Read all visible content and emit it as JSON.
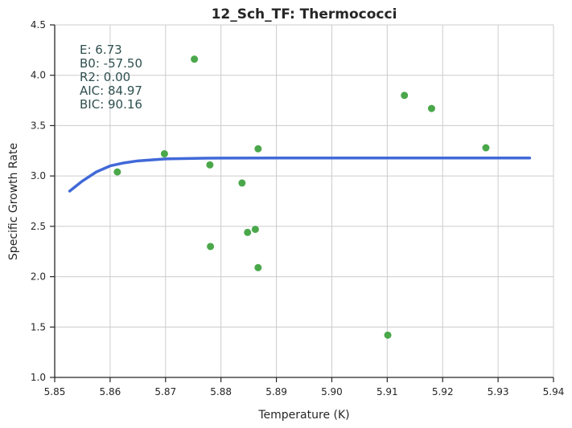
{
  "chart_data": {
    "type": "scatter",
    "title": "12_Sch_TF: Thermococci",
    "xlabel": "Temperature (K)",
    "ylabel": "Specific Growth Rate",
    "xlim": [
      5.85,
      5.94
    ],
    "ylim": [
      1.0,
      4.5
    ],
    "x_ticks": [
      "5.85",
      "5.86",
      "5.87",
      "5.88",
      "5.89",
      "5.90",
      "5.91",
      "5.92",
      "5.93",
      "5.94"
    ],
    "y_ticks": [
      "1.0",
      "1.5",
      "2.0",
      "2.5",
      "3.0",
      "3.5",
      "4.0",
      "4.5"
    ],
    "grid": true,
    "annotations": [
      "E:  6.73",
      "B0:  -57.50",
      "R2:  0.00",
      "AIC: 84.97",
      "BIC: 90.16"
    ],
    "series": [
      {
        "kind": "scatter",
        "color": "#4aa84a",
        "points": [
          {
            "x": 5.8613,
            "y": 3.04
          },
          {
            "x": 5.8698,
            "y": 3.22
          },
          {
            "x": 5.8752,
            "y": 4.16
          },
          {
            "x": 5.878,
            "y": 3.11
          },
          {
            "x": 5.8781,
            "y": 2.3
          },
          {
            "x": 5.8838,
            "y": 2.93
          },
          {
            "x": 5.8848,
            "y": 2.44
          },
          {
            "x": 5.8862,
            "y": 2.47
          },
          {
            "x": 5.8867,
            "y": 3.27
          },
          {
            "x": 5.8867,
            "y": 2.09
          },
          {
            "x": 5.9101,
            "y": 1.42
          },
          {
            "x": 5.9131,
            "y": 3.8
          },
          {
            "x": 5.918,
            "y": 3.67
          },
          {
            "x": 5.9278,
            "y": 3.28
          }
        ]
      },
      {
        "kind": "line",
        "color": "#4169d8",
        "points": [
          {
            "x": 5.8527,
            "y": 2.85
          },
          {
            "x": 5.855,
            "y": 2.95
          },
          {
            "x": 5.8575,
            "y": 3.04
          },
          {
            "x": 5.86,
            "y": 3.1
          },
          {
            "x": 5.8625,
            "y": 3.13
          },
          {
            "x": 5.865,
            "y": 3.15
          },
          {
            "x": 5.8675,
            "y": 3.16
          },
          {
            "x": 5.87,
            "y": 3.17
          },
          {
            "x": 5.875,
            "y": 3.175
          },
          {
            "x": 5.88,
            "y": 3.178
          },
          {
            "x": 5.89,
            "y": 3.179
          },
          {
            "x": 5.91,
            "y": 3.179
          },
          {
            "x": 5.9357,
            "y": 3.179
          }
        ]
      }
    ]
  }
}
